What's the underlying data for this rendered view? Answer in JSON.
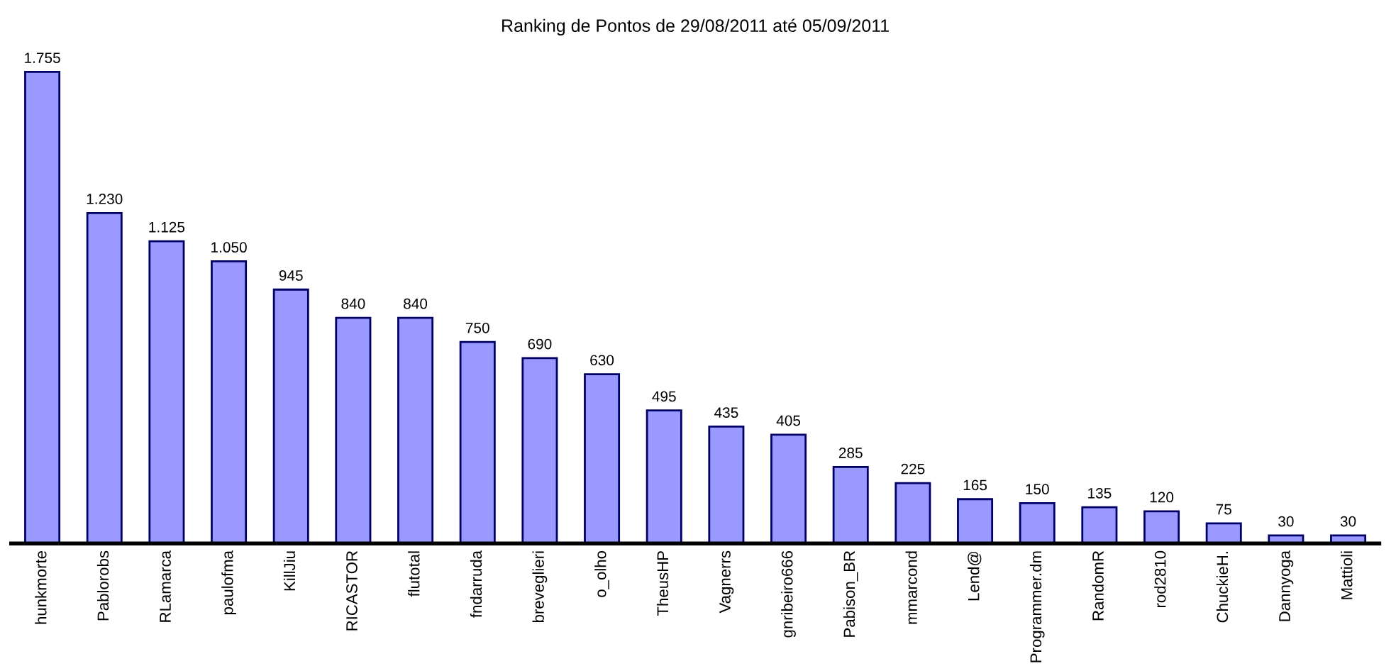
{
  "chart_data": {
    "type": "bar",
    "title": "Ranking de Pontos de 29/08/2011 até 05/09/2011",
    "categories": [
      "hunkmorte",
      "Pablorobs",
      "RLamarca",
      "paulofma",
      "KillJiu",
      "RICASTOR",
      "flutotal",
      "fndarruda",
      "breveglieri",
      "o_olho",
      "TheusHP",
      "Vagnerrs",
      "gnribeiro666",
      "Pabison_BR",
      "mmarcond",
      "Lend@",
      "Programmer.dm",
      "RandomR",
      "rod2810",
      "ChuckieH.",
      "Dannyoga",
      "Mattioli"
    ],
    "values": [
      1755,
      1230,
      1125,
      1050,
      945,
      840,
      840,
      750,
      690,
      630,
      495,
      435,
      405,
      285,
      225,
      165,
      150,
      135,
      120,
      75,
      30,
      30
    ],
    "value_labels": [
      "1.755",
      "1.230",
      "1.125",
      "1.050",
      "945",
      "840",
      "840",
      "750",
      "690",
      "630",
      "495",
      "435",
      "405",
      "285",
      "225",
      "165",
      "150",
      "135",
      "120",
      "75",
      "30",
      "30"
    ],
    "color": "#9999ff",
    "grid": false
  }
}
